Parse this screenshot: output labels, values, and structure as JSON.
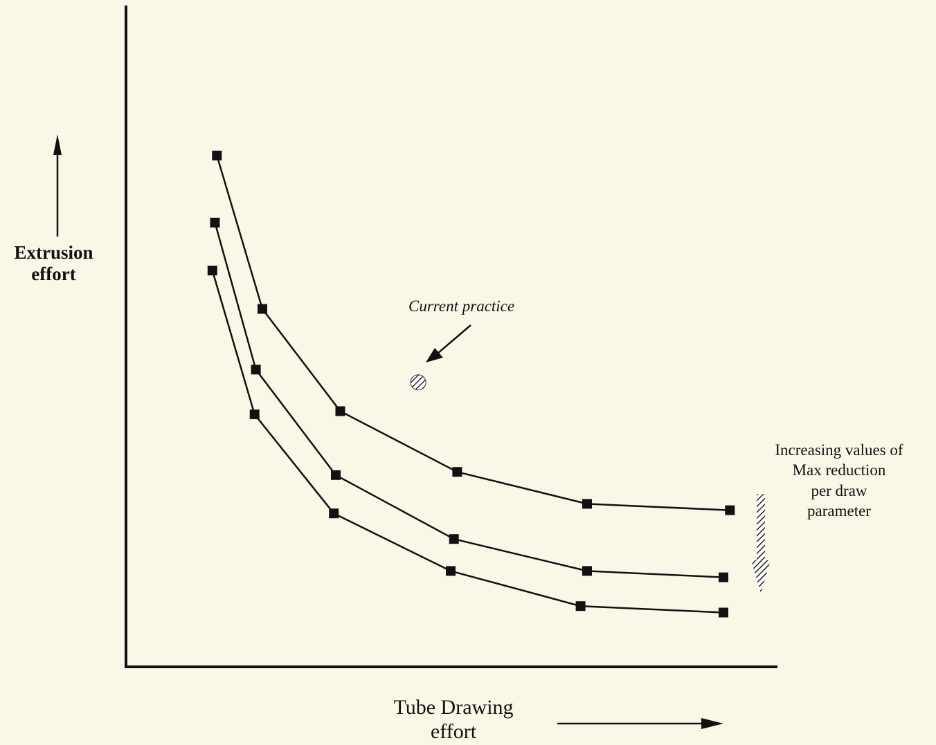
{
  "chart_data": {
    "type": "line",
    "title": "",
    "xlabel": [
      "Tube Drawing",
      "effort"
    ],
    "ylabel": [
      "Extrusion",
      "effort"
    ],
    "x_ticks": [],
    "y_ticks": [],
    "grid": false,
    "series": [
      {
        "points": [
          [
            1.4,
            8.0
          ],
          [
            2.1,
            5.6
          ],
          [
            3.3,
            4.0
          ],
          [
            5.1,
            3.05
          ],
          [
            7.1,
            2.55
          ],
          [
            9.3,
            2.45
          ]
        ]
      },
      {
        "points": [
          [
            1.37,
            6.95
          ],
          [
            2.0,
            4.65
          ],
          [
            3.23,
            3.0
          ],
          [
            5.05,
            2.0
          ],
          [
            7.1,
            1.5
          ],
          [
            9.2,
            1.4
          ]
        ]
      },
      {
        "points": [
          [
            1.33,
            6.2
          ],
          [
            1.98,
            3.95
          ],
          [
            3.2,
            2.4
          ],
          [
            5.0,
            1.5
          ],
          [
            7.0,
            0.95
          ],
          [
            9.2,
            0.85
          ]
        ]
      }
    ],
    "annotations": {
      "current_practice": {
        "label": "Current practice",
        "x": 4.5,
        "y": 4.45
      },
      "trend_note": [
        "Increasing values of",
        "Max reduction",
        "per draw",
        "parameter"
      ]
    }
  },
  "colors": {
    "background": "#fbf7e6",
    "ink": "#111111"
  }
}
